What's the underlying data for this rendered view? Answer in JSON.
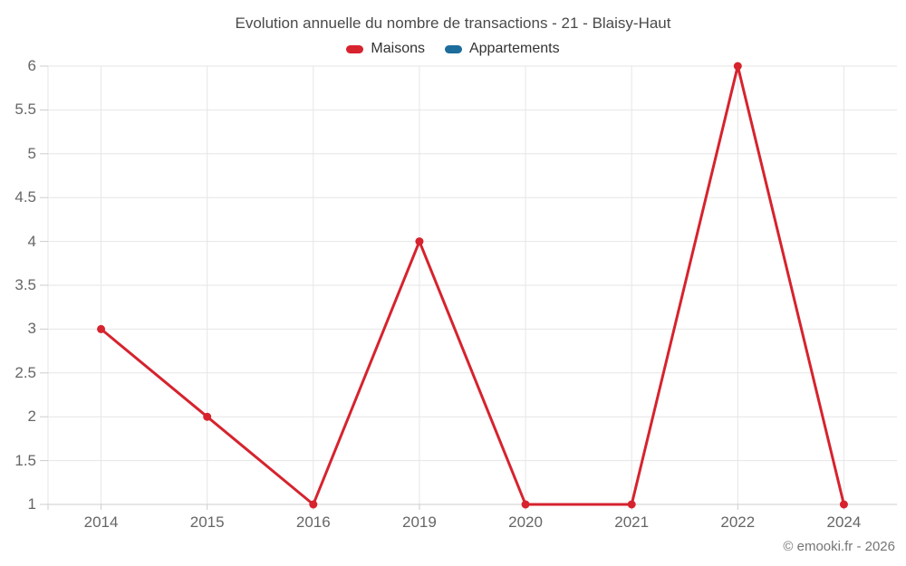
{
  "chart_data": {
    "type": "line",
    "title": "Evolution annuelle du nombre de transactions - 21 - Blaisy-Haut",
    "categories": [
      "2014",
      "2015",
      "2016",
      "2019",
      "2020",
      "2021",
      "2022",
      "2024"
    ],
    "series": [
      {
        "name": "Maisons",
        "color": "#d6232e",
        "values": [
          3,
          2,
          1,
          4,
          1,
          1,
          6,
          1
        ]
      },
      {
        "name": "Appartements",
        "color": "#1c6d9c",
        "values": []
      }
    ],
    "xlabel": "",
    "ylabel": "",
    "ylim": [
      1,
      6
    ],
    "ytick_step": 0.5,
    "yticks": [
      1,
      1.5,
      2,
      2.5,
      3,
      3.5,
      4,
      4.5,
      5,
      5.5,
      6
    ],
    "grid": true,
    "legend_position": "top"
  },
  "footer": {
    "credit": "© emooki.fr - 2026"
  },
  "colors": {
    "gridline": "#e6e6e6",
    "axis_line": "#cccccc",
    "tick_mark": "#cccccc",
    "title_text": "#4a4a4a",
    "legend_text": "#333333",
    "axis_label_text": "#666666",
    "footer_text": "#757575",
    "background": "#ffffff"
  }
}
